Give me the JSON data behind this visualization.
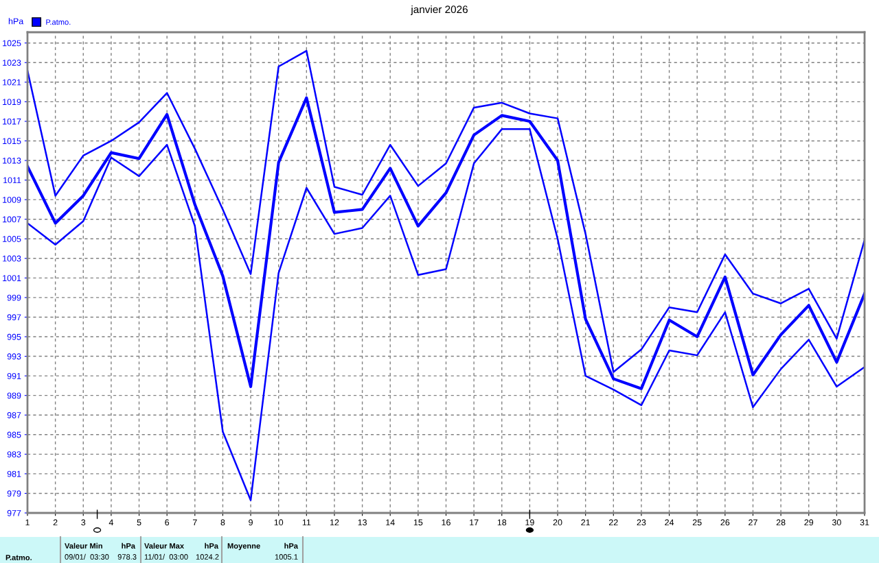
{
  "chart_data": {
    "type": "line",
    "title": "janvier 2026",
    "ylabel": "hPa",
    "x": [
      1,
      2,
      3,
      4,
      5,
      6,
      7,
      8,
      9,
      10,
      11,
      12,
      13,
      14,
      15,
      16,
      17,
      18,
      19,
      20,
      21,
      22,
      23,
      24,
      25,
      26,
      27,
      28,
      29,
      30,
      31
    ],
    "series": [
      {
        "color": "#0000ff",
        "values": [
          1022.2,
          1009.4,
          1013.5,
          1015.0,
          1016.9,
          1019.9,
          1014.2,
          1008.0,
          1001.4,
          1022.6,
          1024.2,
          1010.3,
          1009.5,
          1014.6,
          1010.4,
          1012.7,
          1018.4,
          1018.9,
          1017.8,
          1017.3,
          1005.5,
          991.4,
          993.7,
          998.0,
          997.5,
          1003.4,
          999.4,
          998.4,
          999.9,
          994.8,
          1004.9
        ]
      },
      {
        "name": "P.atmo.",
        "color": "#0000ff",
        "values": [
          1012.4,
          1006.6,
          1009.4,
          1013.8,
          1013.2,
          1017.7,
          1008.5,
          1001.2,
          989.9,
          1012.8,
          1019.4,
          1007.7,
          1008.0,
          1012.2,
          1006.3,
          1009.7,
          1015.6,
          1017.6,
          1017.0,
          1013.0,
          996.8,
          990.7,
          989.7,
          996.7,
          995.0,
          1001.1,
          991.1,
          995.2,
          998.2,
          992.4,
          999.4
        ]
      },
      {
        "color": "#0000ff",
        "values": [
          1006.6,
          1004.4,
          1006.8,
          1013.3,
          1011.4,
          1014.6,
          1006.3,
          985.3,
          978.3,
          1001.5,
          1010.2,
          1005.5,
          1006.1,
          1009.4,
          1001.3,
          1001.9,
          1012.7,
          1016.2,
          1016.2,
          1005.0,
          991.0,
          989.6,
          988.0,
          993.6,
          993.1,
          997.5,
          987.8,
          991.7,
          994.7,
          989.9,
          991.9
        ]
      }
    ],
    "xlim": [
      1,
      31
    ],
    "xticks": [
      1,
      2,
      3,
      4,
      5,
      6,
      7,
      8,
      9,
      10,
      11,
      12,
      13,
      14,
      15,
      16,
      17,
      18,
      19,
      20,
      21,
      22,
      23,
      24,
      25,
      26,
      27,
      28,
      29,
      30,
      31
    ],
    "ylim": [
      977,
      1026.1
    ],
    "yticks": [
      977,
      979,
      981,
      983,
      985,
      987,
      989,
      991,
      993,
      995,
      997,
      999,
      1001,
      1003,
      1005,
      1007,
      1009,
      1011,
      1013,
      1015,
      1017,
      1019,
      1021,
      1023,
      1025
    ],
    "grid": true,
    "legend": "top left",
    "marker": "none",
    "line_style": "solid",
    "annotations": [
      "P.atmo.",
      "Valeur Min",
      "hPa",
      "09/01/  03:30",
      "978.3",
      "Valeur Max",
      "hPa",
      "11/01/  03:00",
      "1024.2",
      "Moyenne",
      "hPa",
      "1005.1"
    ]
  }
}
